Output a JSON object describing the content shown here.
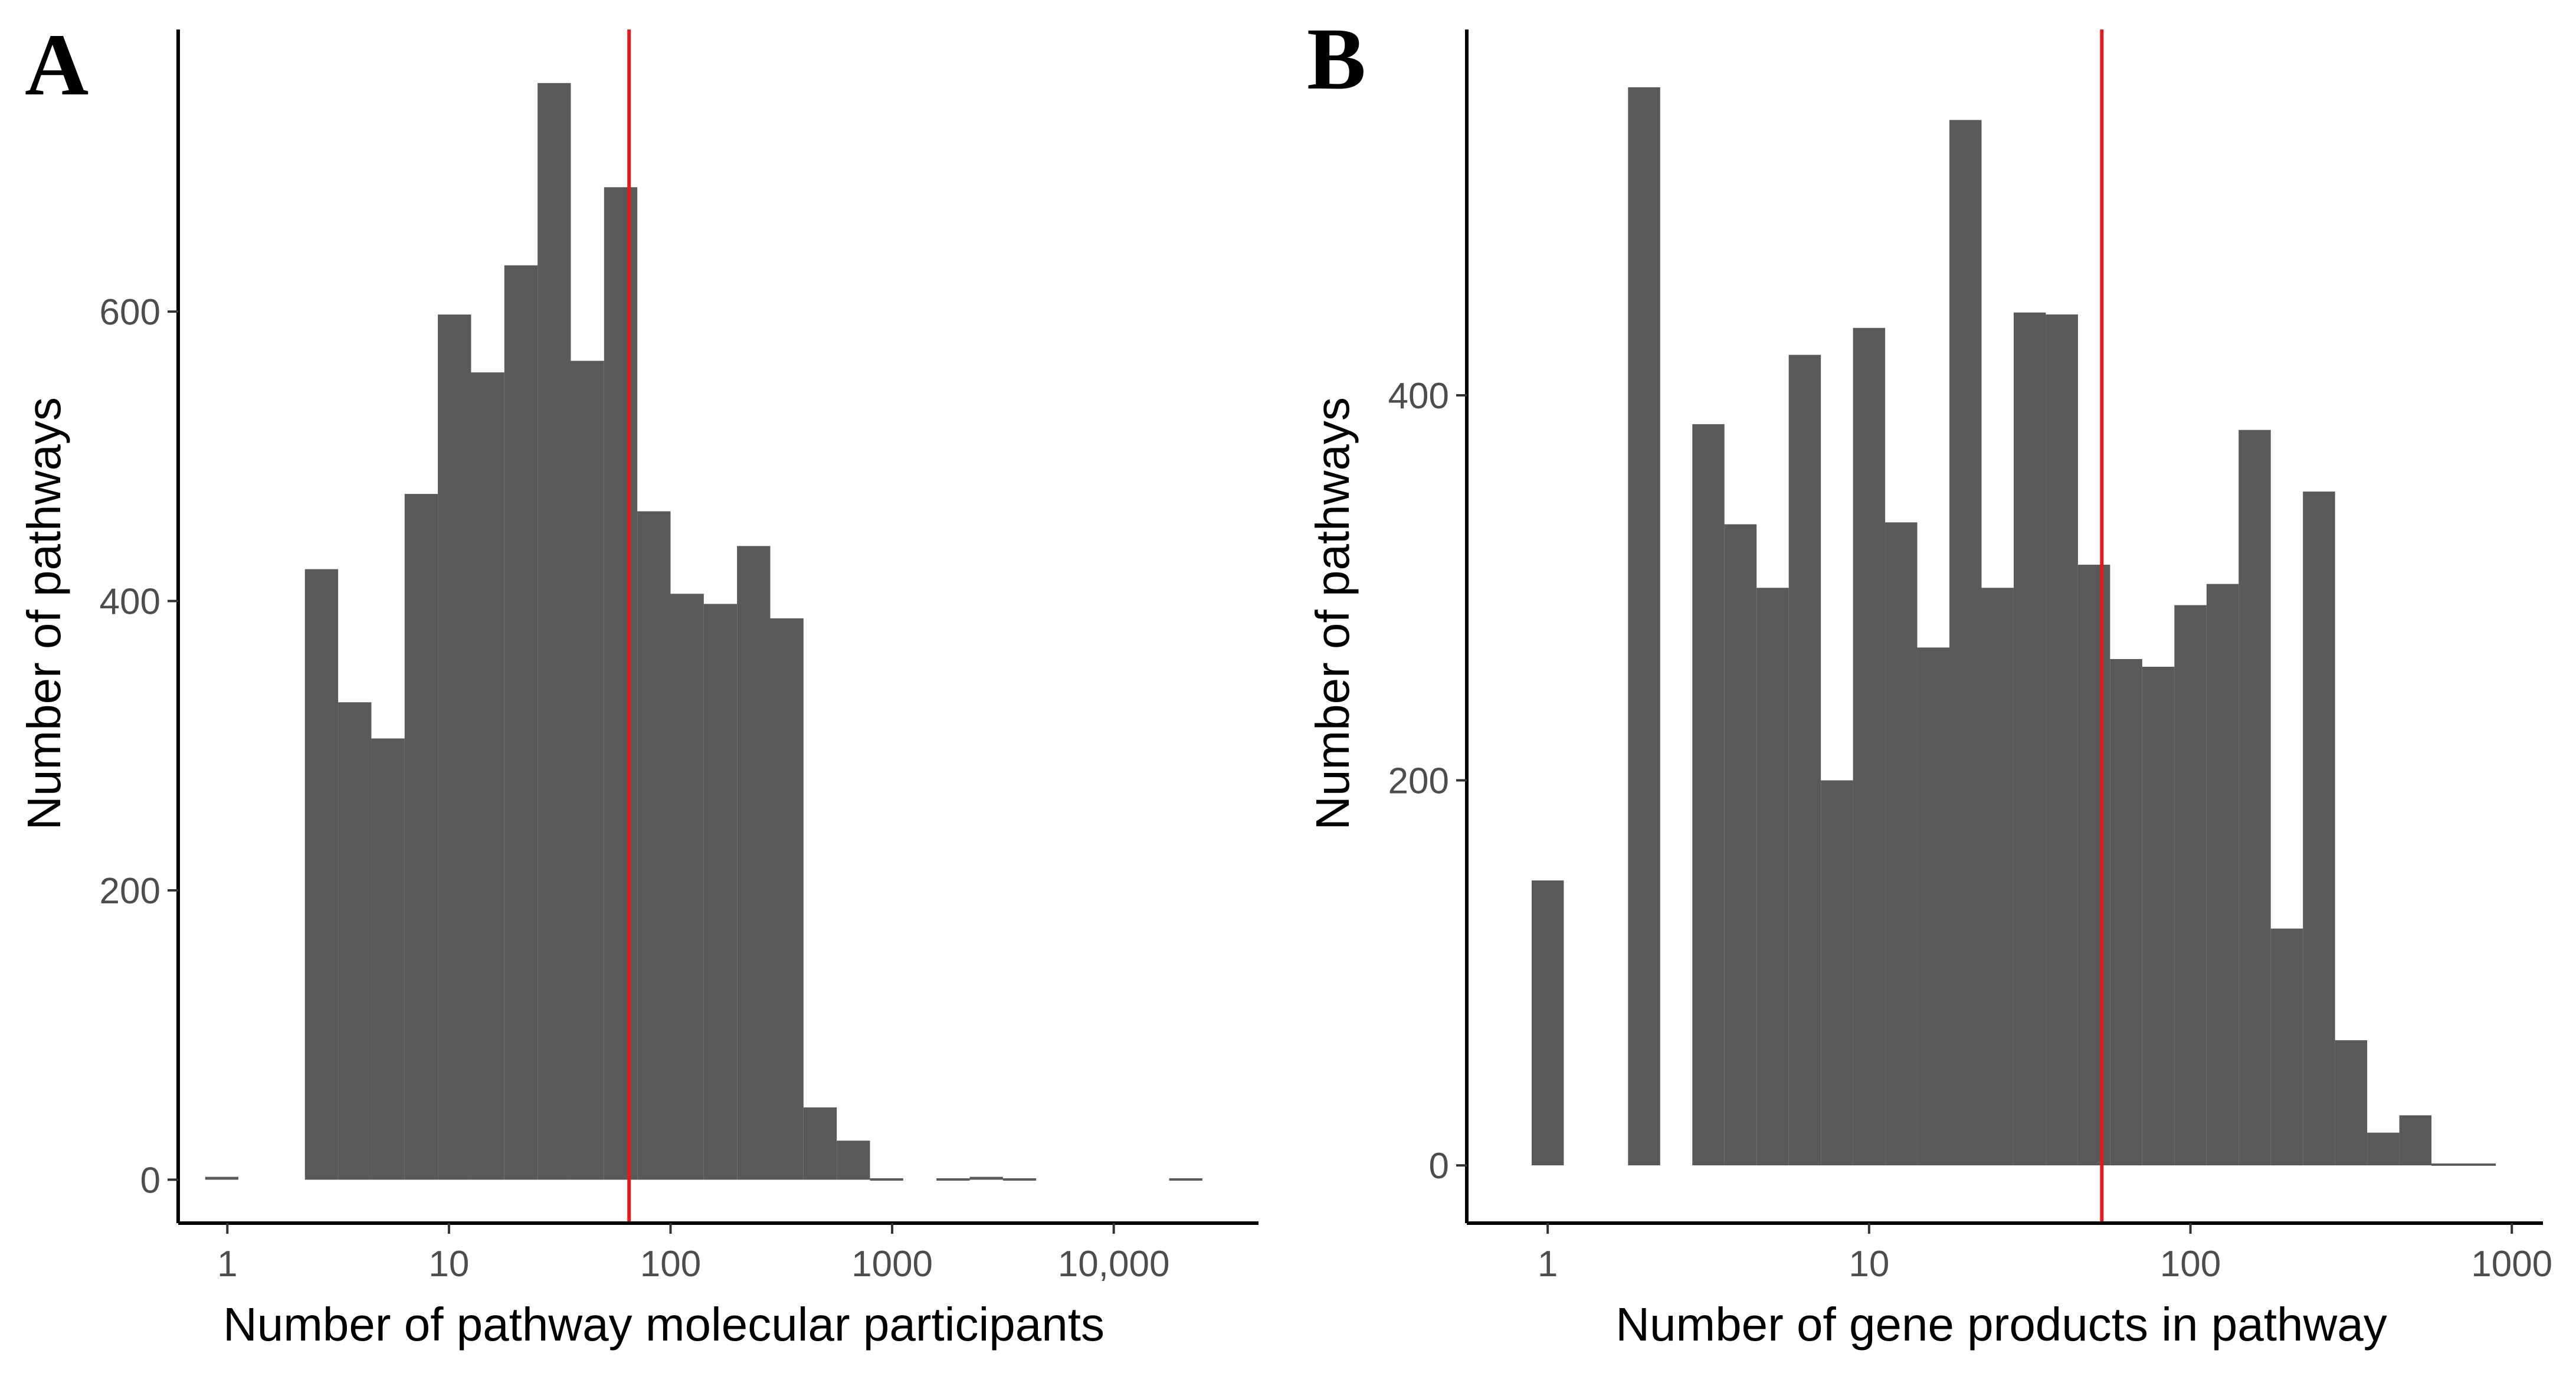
{
  "colors": {
    "bar": "#595959",
    "refline": "#e31a1c",
    "axis": "#000000",
    "tick_text": "#4d4d4d"
  },
  "chart_data": [
    {
      "type": "bar",
      "panel": "A",
      "xscale": "log10",
      "xlabel": "Number of pathway molecular participants",
      "ylabel": "Number of pathways",
      "xlim": [
        0.6,
        45000
      ],
      "ylim": [
        -30,
        795
      ],
      "xticks": [
        1,
        10,
        100,
        1000,
        10000
      ],
      "xtick_labels": [
        "1",
        "10",
        "100",
        "1000",
        "10,000"
      ],
      "yticks": [
        0,
        200,
        400,
        600
      ],
      "ytick_labels": [
        "0",
        "200",
        "400",
        "600"
      ],
      "grid": false,
      "bins_log10": {
        "left_edges": [
          -0.1,
          0.05,
          0.2,
          0.35,
          0.5,
          0.65,
          0.8,
          0.95,
          1.1,
          1.25,
          1.4,
          1.55,
          1.7,
          1.85,
          2.0,
          2.15,
          2.3,
          2.45,
          2.6,
          2.75,
          2.9,
          3.05,
          3.2,
          3.35,
          3.5,
          3.65,
          3.8,
          3.95,
          4.1,
          4.25
        ],
        "width": 0.15
      },
      "values": [
        2,
        0,
        0,
        422,
        330,
        305,
        474,
        598,
        558,
        632,
        758,
        566,
        686,
        462,
        405,
        398,
        438,
        388,
        50,
        27,
        1,
        0,
        1,
        2,
        1,
        0,
        0,
        0,
        0,
        1
      ],
      "vline_x": 65
    },
    {
      "type": "bar",
      "panel": "B",
      "xscale": "log10",
      "xlabel": "Number of gene products in pathway",
      "ylabel": "Number of pathways",
      "xlim": [
        0.56,
        1250
      ],
      "ylim": [
        -30,
        590
      ],
      "xticks": [
        1,
        10,
        100,
        1000
      ],
      "xtick_labels": [
        "1",
        "10",
        "100",
        "1000"
      ],
      "yticks": [
        0,
        200,
        400
      ],
      "ytick_labels": [
        "0",
        "200",
        "400"
      ],
      "grid": false,
      "bins_log10": {
        "left_edges": [
          -0.05,
          0.05,
          0.15,
          0.25,
          0.35,
          0.45,
          0.55,
          0.65,
          0.75,
          0.85,
          0.95,
          1.05,
          1.15,
          1.25,
          1.35,
          1.45,
          1.55,
          1.65,
          1.75,
          1.85,
          1.95,
          2.05,
          2.15,
          2.25,
          2.35,
          2.45,
          2.55,
          2.65,
          2.75,
          2.85
        ],
        "width": 0.1
      },
      "values": [
        148,
        0,
        0,
        560,
        0,
        385,
        333,
        300,
        421,
        200,
        435,
        334,
        269,
        543,
        300,
        443,
        442,
        312,
        263,
        259,
        291,
        302,
        382,
        123,
        350,
        65,
        17,
        26,
        1,
        1
      ],
      "vline_x": 53
    }
  ]
}
